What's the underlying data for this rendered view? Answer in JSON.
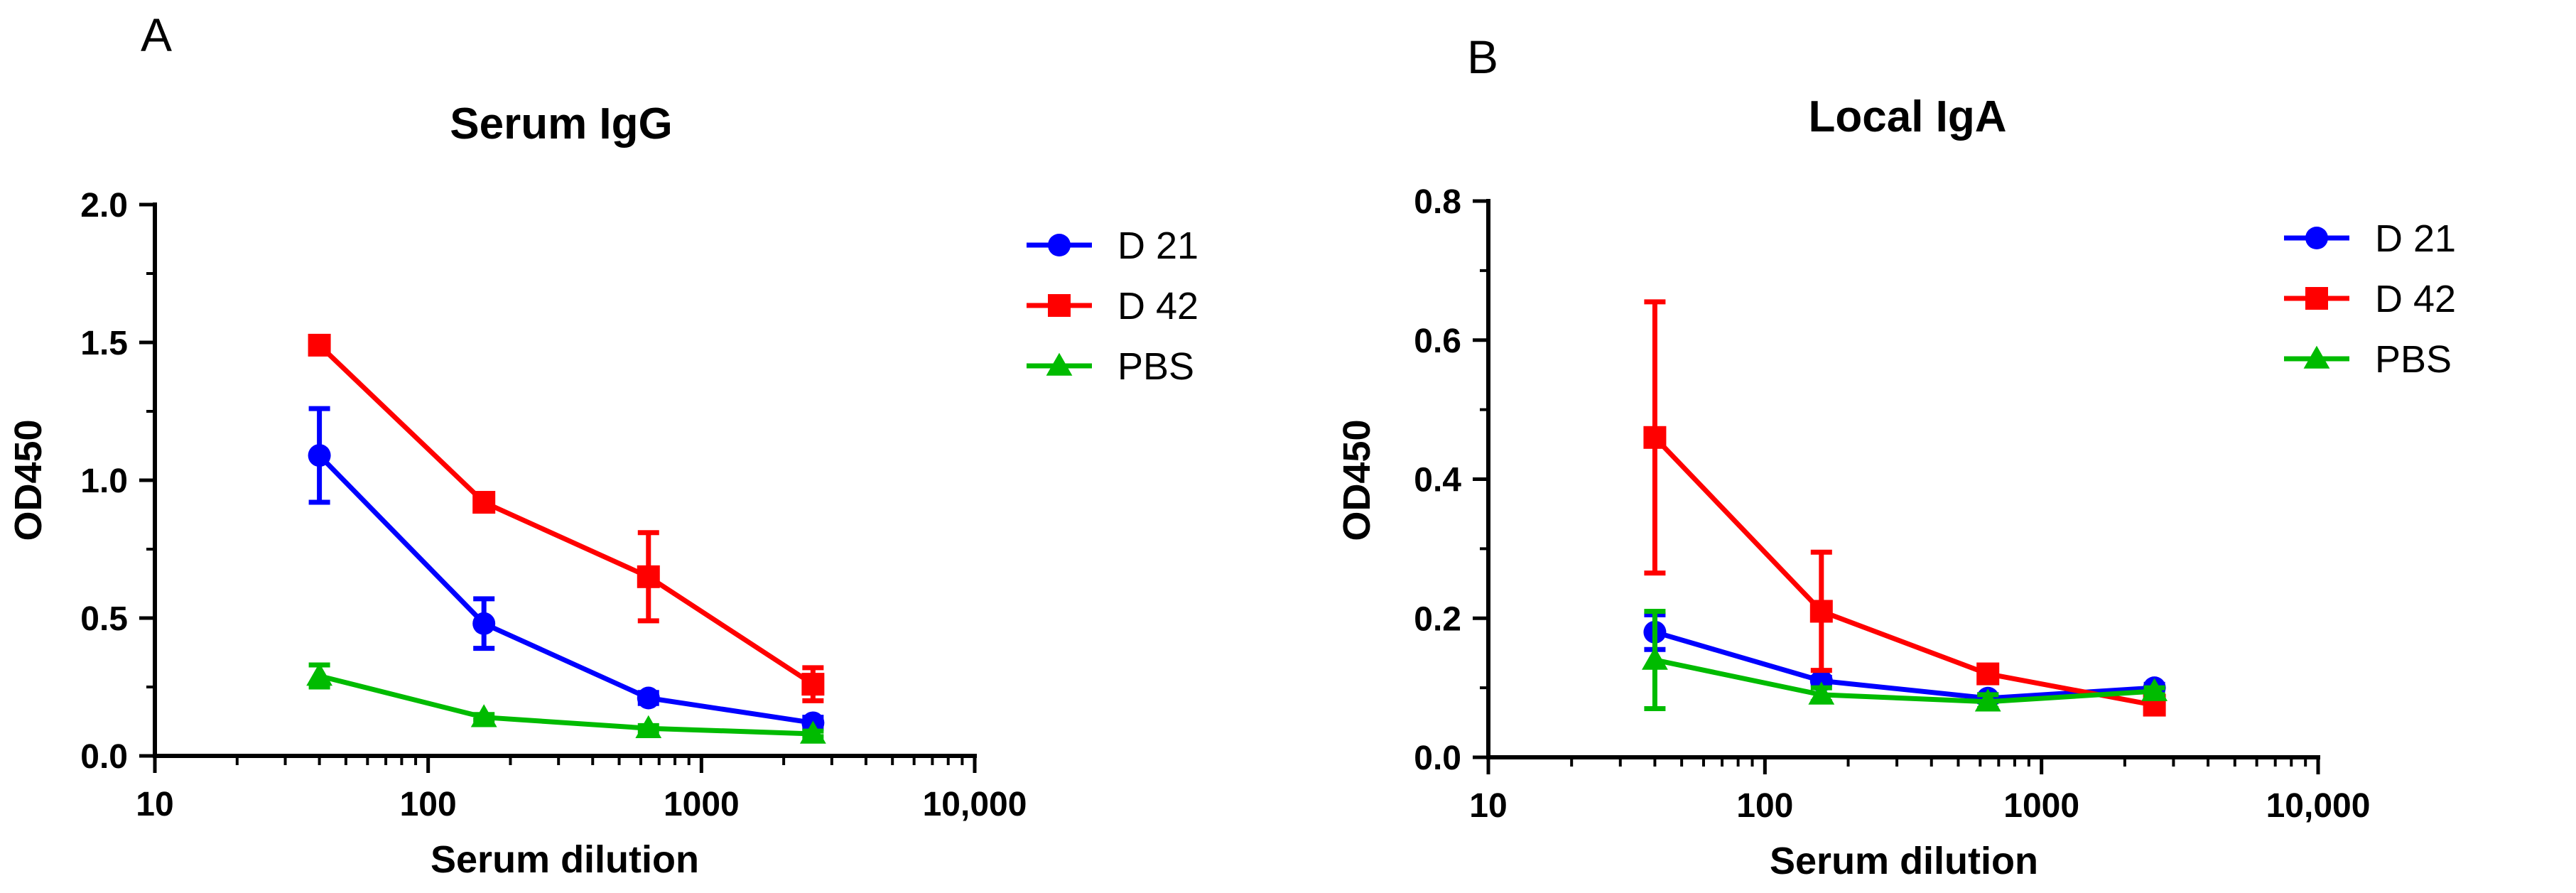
{
  "chart_data": [
    {
      "panel": "A",
      "type": "line",
      "title": "Serum IgG",
      "xlabel": "Serum dilution",
      "ylabel": "OD450",
      "xscale": "log",
      "xlim": [
        10,
        10000
      ],
      "ylim": [
        0,
        2.0
      ],
      "xticks": [
        10,
        100,
        1000,
        10000
      ],
      "xtick_labels": [
        "10",
        "100",
        "1000",
        "10,000"
      ],
      "yticks": [
        0,
        0.5,
        1.0,
        1.5,
        2.0
      ],
      "ytick_labels": [
        "0.0",
        "0.5",
        "1.0",
        "1.5",
        "2.0"
      ],
      "legend_position": "top-right",
      "x": [
        40,
        160,
        640,
        2560
      ],
      "series": [
        {
          "name": "D 21",
          "color": "#0000ff",
          "marker": "circle",
          "values": [
            1.09,
            0.48,
            0.21,
            0.12
          ],
          "errors": [
            0.17,
            0.09,
            0.02,
            0.02
          ]
        },
        {
          "name": "D 42",
          "color": "#ff0000",
          "marker": "square",
          "values": [
            1.49,
            0.92,
            0.65,
            0.26
          ],
          "errors": [
            0.01,
            0.02,
            0.16,
            0.06
          ]
        },
        {
          "name": "PBS",
          "color": "#00bb00",
          "marker": "triangle",
          "values": [
            0.29,
            0.14,
            0.1,
            0.08
          ],
          "errors": [
            0.04,
            0.01,
            0.01,
            0.01
          ]
        }
      ]
    },
    {
      "panel": "B",
      "type": "line",
      "title": "Local IgA",
      "xlabel": "Serum dilution",
      "ylabel": "OD450",
      "xscale": "log",
      "xlim": [
        10,
        10000
      ],
      "ylim": [
        0,
        0.8
      ],
      "xticks": [
        10,
        100,
        1000,
        10000
      ],
      "xtick_labels": [
        "10",
        "100",
        "1000",
        "10,000"
      ],
      "yticks": [
        0,
        0.2,
        0.4,
        0.6,
        0.8
      ],
      "ytick_labels": [
        "0.0",
        "0.2",
        "0.4",
        "0.6",
        "0.8"
      ],
      "legend_position": "top-right",
      "x": [
        40,
        160,
        640,
        2560
      ],
      "series": [
        {
          "name": "D 21",
          "color": "#0000ff",
          "marker": "circle",
          "values": [
            0.18,
            0.11,
            0.085,
            0.1
          ],
          "errors": [
            0.025,
            0.005,
            0.005,
            0.005
          ]
        },
        {
          "name": "D 42",
          "color": "#ff0000",
          "marker": "square",
          "values": [
            0.46,
            0.21,
            0.12,
            0.075
          ],
          "errors": [
            0.195,
            0.085,
            0.005,
            0.005
          ]
        },
        {
          "name": "PBS",
          "color": "#00bb00",
          "marker": "triangle",
          "values": [
            0.14,
            0.09,
            0.08,
            0.095
          ],
          "errors": [
            0.07,
            0.01,
            0.01,
            0.005
          ]
        }
      ]
    }
  ]
}
